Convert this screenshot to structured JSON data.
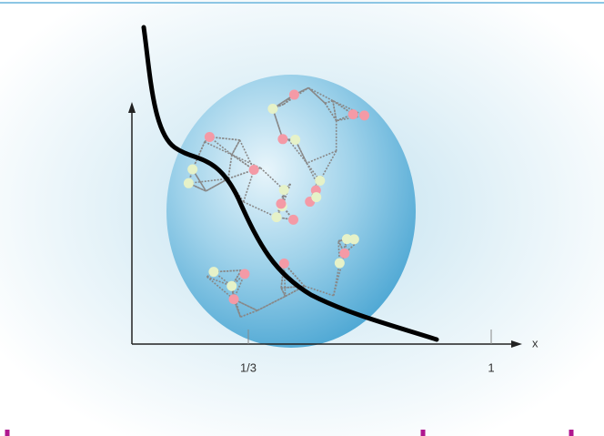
{
  "axis": {
    "x_label": "x",
    "ticks": [
      "1/3",
      "1"
    ]
  }
}
